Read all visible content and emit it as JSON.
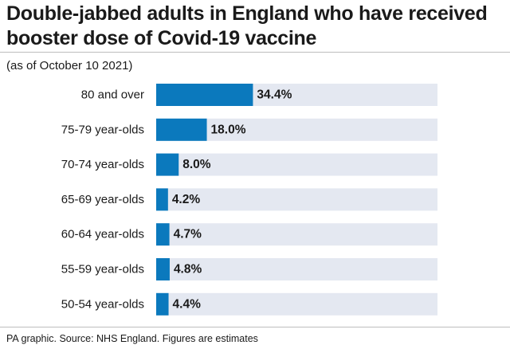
{
  "chart_data": {
    "type": "bar",
    "orientation": "horizontal",
    "title": "Double-jabbed adults in England who have received booster dose of Covid-19 vaccine",
    "subtitle": "(as of October 10 2021)",
    "categories": [
      "80 and over",
      "75-79 year-olds",
      "70-74 year-olds",
      "65-69 year-olds",
      "60-64 year-olds",
      "55-59 year-olds",
      "50-54 year-olds"
    ],
    "values": [
      34.4,
      18.0,
      8.0,
      4.2,
      4.7,
      4.8,
      4.4
    ],
    "value_labels": [
      "34.4%",
      "18.0%",
      "8.0%",
      "4.2%",
      "4.7%",
      "4.8%",
      "4.4%"
    ],
    "xlim": [
      0,
      100
    ],
    "grid": false,
    "legend": "none",
    "bar_color": "#0b79bd",
    "track_color": "#e4e8f1"
  },
  "footer": {
    "source": "PA graphic. Source: NHS England. Figures are estimates"
  }
}
